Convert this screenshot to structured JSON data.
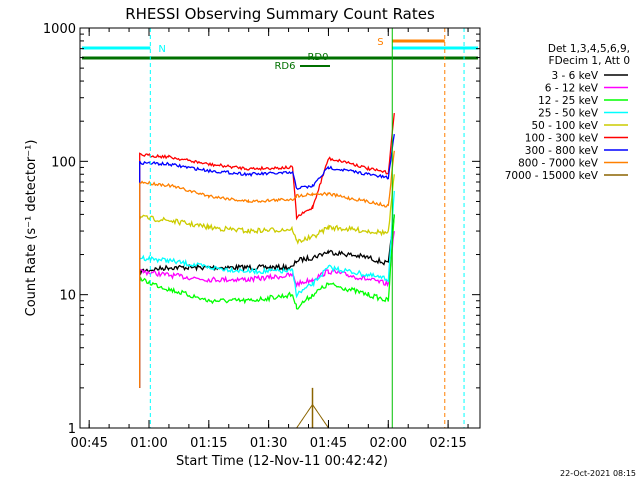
{
  "chart_data": {
    "type": "line",
    "title": "RHESSI Observing Summary Count Rates",
    "xlabel": "Start Time (12-Nov-11 00:42:42)",
    "ylabel": "Count Rate (s⁻¹ detector⁻¹)",
    "y_scale": "log",
    "ylim": [
      1,
      1000
    ],
    "xlim": [
      "00:42:42",
      "02:23:00"
    ],
    "x_ticks": [
      "00:45",
      "01:00",
      "01:15",
      "01:30",
      "01:45",
      "02:00",
      "02:15"
    ],
    "y_ticks": [
      "1",
      "10",
      "100",
      "1000"
    ],
    "grid": false,
    "legend_position": "right",
    "legend_header": [
      "Det 1,3,4,5,6,9,",
      "FDecim 1, Att 0"
    ],
    "series": [
      {
        "name": "3 - 6 keV",
        "color": "#000000",
        "x": [
          "00:57:40",
          "01:05",
          "01:15",
          "01:25",
          "01:36",
          "01:37",
          "01:41",
          "01:45",
          "01:50",
          "01:55",
          "02:00",
          "02:01:30"
        ],
        "y": [
          15,
          16,
          16,
          16,
          16,
          18,
          19,
          21,
          20,
          19,
          17,
          40
        ]
      },
      {
        "name": "6 - 12 keV",
        "color": "#ff00ff",
        "x": [
          "00:57:40",
          "01:05",
          "01:15",
          "01:25",
          "01:36",
          "01:37",
          "01:41",
          "01:45",
          "01:50",
          "01:55",
          "02:00",
          "02:01:30"
        ],
        "y": [
          15,
          14,
          13,
          13,
          14,
          12,
          13,
          15,
          14,
          13,
          12,
          30
        ]
      },
      {
        "name": "12 - 25 keV",
        "color": "#00ff00",
        "x": [
          "00:57:40",
          "01:05",
          "01:15",
          "01:25",
          "01:36",
          "01:37",
          "01:41",
          "01:45",
          "01:50",
          "01:55",
          "02:00",
          "02:01:30"
        ],
        "y": [
          13,
          11,
          9,
          9,
          10,
          8,
          10,
          12,
          11,
          10,
          9,
          40
        ]
      },
      {
        "name": "25 - 50 keV",
        "color": "#00ffff",
        "x": [
          "00:57:40",
          "01:05",
          "01:15",
          "01:25",
          "01:36",
          "01:37",
          "01:41",
          "01:45",
          "01:50",
          "01:55",
          "02:00",
          "02:01:30"
        ],
        "y": [
          19,
          18,
          16,
          15,
          15,
          10,
          12,
          16,
          15,
          14,
          13,
          60
        ]
      },
      {
        "name": "50 - 100 keV",
        "color": "#cccc00",
        "x": [
          "00:57:40",
          "01:05",
          "01:15",
          "01:25",
          "01:36",
          "01:37",
          "01:41",
          "01:45",
          "01:50",
          "01:55",
          "02:00",
          "02:01:30"
        ],
        "y": [
          38,
          36,
          32,
          30,
          31,
          25,
          27,
          32,
          31,
          30,
          29,
          80
        ]
      },
      {
        "name": "100 - 300 keV",
        "color": "#ff0000",
        "x": [
          "00:57:40",
          "01:05",
          "01:15",
          "01:25",
          "01:36",
          "01:37",
          "01:41",
          "01:45",
          "01:50",
          "01:55",
          "02:00",
          "02:01:30"
        ],
        "y": [
          112,
          108,
          95,
          88,
          90,
          38,
          45,
          105,
          98,
          88,
          82,
          230
        ]
      },
      {
        "name": "300 - 800 keV",
        "color": "#0000ff",
        "x": [
          "00:57:40",
          "01:05",
          "01:15",
          "01:25",
          "01:36",
          "01:37",
          "01:41",
          "01:45",
          "01:50",
          "01:55",
          "02:00",
          "02:01:30"
        ],
        "y": [
          98,
          95,
          85,
          80,
          82,
          63,
          65,
          90,
          85,
          80,
          75,
          160
        ]
      },
      {
        "name": "800 - 7000 keV",
        "color": "#ff8000",
        "x": [
          "00:57:40",
          "01:05",
          "01:15",
          "01:25",
          "01:36",
          "01:37",
          "01:41",
          "01:45",
          "01:50",
          "01:55",
          "02:00",
          "02:01:30"
        ],
        "y": [
          70,
          66,
          55,
          50,
          52,
          55,
          57,
          57,
          53,
          50,
          46,
          120
        ]
      },
      {
        "name": "7000 - 15000 keV",
        "color": "#8b6400",
        "x": [
          "00:57:40",
          "01:05",
          "01:15",
          "01:25",
          "01:36",
          "01:37",
          "01:41",
          "01:45",
          "01:50",
          "01:55",
          "02:00",
          "02:01:30"
        ],
        "y": [
          1,
          1,
          1,
          1,
          1,
          1,
          1.5,
          1,
          1,
          1,
          1,
          1
        ]
      }
    ],
    "annotations": [
      {
        "text": "N",
        "color": "#00ffff"
      },
      {
        "text": "S",
        "color": "#ff8000"
      },
      {
        "text": "RD0",
        "color": "#007000"
      },
      {
        "text": "RD6",
        "color": "#007000"
      }
    ],
    "vertical_markers": [
      {
        "time": "01:00:20",
        "color": "#00ffff"
      },
      {
        "time": "02:01:00",
        "color": "#00c000"
      },
      {
        "time": "02:14:10",
        "color": "#ff8000"
      },
      {
        "time": "02:19:00",
        "color": "#00ffff"
      }
    ],
    "footer": "22-Oct-2021 08:15"
  }
}
